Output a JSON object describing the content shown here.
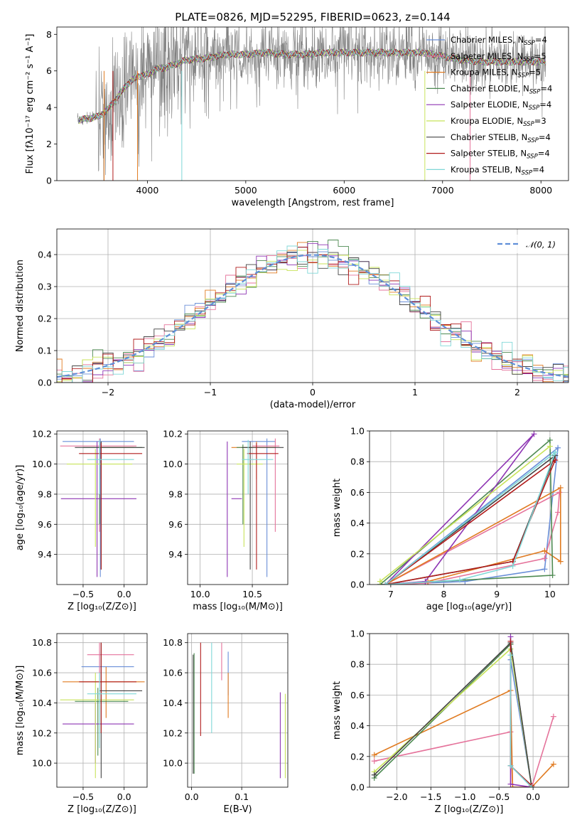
{
  "title": "PLATE=0826, MJD=52295, FIBERID=0623, z=0.144",
  "colors": {
    "chabrier_miles": "#6a8fd8",
    "salpeter_miles": "#e5739b",
    "kroupa_miles": "#e07b21",
    "chabrier_elodie": "#4e8a52",
    "salpeter_elodie": "#8e35b3",
    "kroupa_elodie": "#c8e35a",
    "chabrier_stelib": "#444444",
    "salpeter_stelib": "#b01c1c",
    "kroupa_stelib": "#7fd7d7",
    "data": "#808080",
    "normal": "#5f8fd8"
  },
  "chart_data": [
    {
      "id": "spectrum",
      "type": "line",
      "xlabel": "wavelength [Angstrom, rest frame]",
      "ylabel": "Flux [fλ10⁻¹⁷ erg cm⁻² s⁻¹ A⁻¹]",
      "xlim": [
        3080,
        8280
      ],
      "ylim": [
        0,
        8.4
      ],
      "xticks": [
        "4000",
        "5000",
        "6000",
        "7000",
        "8000"
      ],
      "yticks": [
        "0",
        "2",
        "4",
        "6",
        "8"
      ],
      "legend_position": "right",
      "legend": [
        "Chabrier MILES, N_SSP=4",
        "Salpeter MILES, N_SSP=5",
        "Kroupa MILES, N_SSP=5",
        "Chabrier ELODIE, N_SSP=4",
        "Salpeter ELODIE, N_SSP=4",
        "Kroupa ELODIE, N_SSP=3",
        "Chabrier STELIB, N_SSP=4",
        "Salpeter STELIB, N_SSP=4",
        "Kroupa STELIB, N_SSP=4"
      ],
      "model_continuum": {
        "x": [
          3300,
          3500,
          3600,
          3700,
          3800,
          3900,
          4000,
          4100,
          4200,
          4400,
          4600,
          4800,
          5000,
          5200,
          5400,
          5600,
          5800,
          6000,
          6200,
          6400,
          6600,
          6800,
          7000,
          7200,
          7400,
          7600,
          7800,
          8000
        ],
        "y": [
          3.3,
          3.5,
          3.9,
          4.6,
          5.3,
          5.7,
          5.8,
          6.1,
          6.2,
          6.6,
          6.7,
          6.9,
          6.9,
          7.0,
          6.9,
          6.9,
          7.0,
          7.0,
          7.0,
          7.0,
          7.0,
          7.0,
          6.8,
          6.6,
          6.5,
          6.5,
          6.5,
          6.5
        ]
      }
    },
    {
      "id": "residual_hist",
      "type": "step-histogram",
      "xlabel": "(data-model)/error",
      "ylabel": "Normed distribution",
      "xlim": [
        -2.5,
        2.5
      ],
      "ylim": [
        0,
        0.48
      ],
      "xticks": [
        "−2",
        "−1",
        "0",
        "1",
        "2"
      ],
      "yticks": [
        "0.0",
        "0.1",
        "0.2",
        "0.3",
        "0.4"
      ],
      "reference_curve": "𝒩(0, 1)",
      "bin_width": 0.1
    },
    {
      "id": "age_vs_Z",
      "type": "errorbar",
      "xlabel": "Z [log₁₀(Z/Z⊙)]",
      "ylabel": "age  [log₁₀(age/yr)]",
      "xlim": [
        -0.82,
        0.28
      ],
      "ylim": [
        9.2,
        10.22
      ],
      "xticks": [
        "−0.5",
        "0.0"
      ],
      "yticks": [
        "9.4",
        "9.6",
        "9.8",
        "10.0",
        "10.2"
      ],
      "points": [
        {
          "x": -0.29,
          "xlo": -0.75,
          "xhi": 0.12,
          "y": 10.15,
          "ylo": 9.25,
          "yhi": 10.17
        },
        {
          "x": -0.3,
          "xlo": -0.78,
          "xhi": 0.15,
          "y": 10.12,
          "ylo": 9.55,
          "yhi": 10.17
        },
        {
          "x": -0.28,
          "xlo": -0.32,
          "xhi": 0.12,
          "y": 10.11,
          "ylo": 9.9,
          "yhi": 10.15
        },
        {
          "x": -0.3,
          "xlo": -0.5,
          "xhi": 0.22,
          "y": 10.11,
          "ylo": 9.6,
          "yhi": 10.13
        },
        {
          "x": -0.33,
          "xlo": -0.77,
          "xhi": 0.15,
          "y": 9.77,
          "ylo": 9.25,
          "yhi": 10.15
        },
        {
          "x": -0.35,
          "xlo": -0.7,
          "xhi": 0.1,
          "y": 10.0,
          "ylo": 9.45,
          "yhi": 10.1
        },
        {
          "x": -0.28,
          "xlo": -0.6,
          "xhi": 0.25,
          "y": 10.11,
          "ylo": 9.3,
          "yhi": 10.15
        },
        {
          "x": -0.28,
          "xlo": -0.55,
          "xhi": 0.22,
          "y": 10.07,
          "ylo": 9.3,
          "yhi": 10.14
        },
        {
          "x": -0.3,
          "xlo": -0.45,
          "xhi": 0.12,
          "y": 10.03,
          "ylo": 9.8,
          "yhi": 10.16
        }
      ]
    },
    {
      "id": "age_vs_mass",
      "type": "errorbar",
      "xlabel": "mass [log₁₀(M/M⊙)]",
      "xlim": [
        9.88,
        10.84
      ],
      "ylim": [
        9.2,
        10.22
      ],
      "xticks": [
        "10.0",
        "10.5"
      ],
      "yticks": [
        "9.4",
        "9.6",
        "9.8",
        "10.0",
        "10.2"
      ],
      "points": [
        {
          "x": 10.64,
          "xlo": 10.4,
          "xhi": 10.72,
          "y": 10.15,
          "ylo": 9.25,
          "yhi": 10.17
        },
        {
          "x": 10.72,
          "xlo": 10.5,
          "xhi": 10.76,
          "y": 10.12,
          "ylo": 9.55,
          "yhi": 10.17
        },
        {
          "x": 10.54,
          "xlo": 10.3,
          "xhi": 10.72,
          "y": 10.11,
          "ylo": 9.9,
          "yhi": 10.15
        },
        {
          "x": 10.41,
          "xlo": 10.35,
          "xhi": 10.5,
          "y": 10.11,
          "ylo": 9.6,
          "yhi": 10.13
        },
        {
          "x": 10.26,
          "xlo": 10.3,
          "xhi": 10.4,
          "y": 9.77,
          "ylo": 9.25,
          "yhi": 10.15
        },
        {
          "x": 10.42,
          "xlo": 10.35,
          "xhi": 10.6,
          "y": 10.0,
          "ylo": 9.45,
          "yhi": 10.1
        },
        {
          "x": 10.48,
          "xlo": 10.4,
          "xhi": 10.8,
          "y": 10.11,
          "ylo": 9.3,
          "yhi": 10.15
        },
        {
          "x": 10.54,
          "xlo": 10.45,
          "xhi": 10.75,
          "y": 10.07,
          "ylo": 9.3,
          "yhi": 10.14
        },
        {
          "x": 10.46,
          "xlo": 10.4,
          "xhi": 10.7,
          "y": 10.03,
          "ylo": 9.8,
          "yhi": 10.16
        }
      ]
    },
    {
      "id": "mass_weight_vs_age",
      "type": "line",
      "xlabel": "age  [log₁₀(age/yr)]",
      "ylabel": "mass weight",
      "xlim": [
        6.6,
        10.35
      ],
      "ylim": [
        0,
        1.0
      ],
      "xticks": [
        "7",
        "8",
        "9",
        "10"
      ],
      "yticks": [
        "0.0",
        "0.2",
        "0.4",
        "0.6",
        "0.8",
        "1.0"
      ],
      "series": [
        {
          "x": [
            6.9,
            8.4,
            9.9,
            10.15,
            6.9
          ],
          "y": [
            0.0,
            0.02,
            0.1,
            0.89,
            0.0
          ]
        },
        {
          "x": [
            6.9,
            7.7,
            9.9,
            10.15,
            10.18,
            6.9
          ],
          "y": [
            0.0,
            0.01,
            0.17,
            0.47,
            0.6,
            0.0
          ]
        },
        {
          "x": [
            6.9,
            7.7,
            9.9,
            10.2,
            10.2,
            6.9
          ],
          "y": [
            0.0,
            0.02,
            0.22,
            0.15,
            0.63,
            0.0
          ]
        },
        {
          "x": [
            6.8,
            10.0,
            10.05,
            6.8
          ],
          "y": [
            0.0,
            0.94,
            0.06,
            0.0
          ]
        },
        {
          "x": [
            6.9,
            7.65,
            9.7,
            6.9
          ],
          "y": [
            0.0,
            0.02,
            0.98,
            0.0
          ]
        },
        {
          "x": [
            6.8,
            10.0,
            6.8
          ],
          "y": [
            0.02,
            0.9,
            0.02
          ]
        },
        {
          "x": [
            6.9,
            9.3,
            10.1,
            6.9
          ],
          "y": [
            0.0,
            0.15,
            0.84,
            0.0
          ]
        },
        {
          "x": [
            6.9,
            9.3,
            10.1,
            6.9
          ],
          "y": [
            0.0,
            0.15,
            0.81,
            0.0
          ]
        },
        {
          "x": [
            6.9,
            8.3,
            9.3,
            10.1,
            6.9
          ],
          "y": [
            0.0,
            0.03,
            0.12,
            0.86,
            0.0
          ]
        }
      ]
    },
    {
      "id": "mass_vs_Z",
      "type": "errorbar",
      "xlabel": "Z [log₁₀(Z/Z⊙)]",
      "ylabel": "mass [log₁₀(M/M⊙)]",
      "xlim": [
        -0.82,
        0.28
      ],
      "ylim": [
        9.84,
        10.86
      ],
      "xticks": [
        "−0.5",
        "0.0"
      ],
      "yticks": [
        "10.0",
        "10.2",
        "10.4",
        "10.6",
        "10.8"
      ],
      "points": [
        {
          "x": -0.3,
          "xlo": -0.52,
          "xhi": 0.12,
          "y": 10.64,
          "ylo": 10.45,
          "yhi": 10.74
        },
        {
          "x": -0.3,
          "xlo": -0.45,
          "xhi": 0.12,
          "y": 10.72,
          "ylo": 10.55,
          "yhi": 10.8
        },
        {
          "x": -0.22,
          "xlo": -0.75,
          "xhi": 0.25,
          "y": 10.54,
          "ylo": 10.3,
          "yhi": 10.64
        },
        {
          "x": -0.32,
          "xlo": -0.6,
          "xhi": 0.05,
          "y": 10.41,
          "ylo": 10.05,
          "yhi": 10.5
        },
        {
          "x": -0.35,
          "xlo": -0.75,
          "xhi": 0.12,
          "y": 10.26,
          "ylo": 10.0,
          "yhi": 10.4
        },
        {
          "x": -0.35,
          "xlo": -0.78,
          "xhi": 0.12,
          "y": 10.42,
          "ylo": 9.9,
          "yhi": 10.6
        },
        {
          "x": -0.28,
          "xlo": -0.3,
          "xhi": 0.22,
          "y": 10.48,
          "ylo": 9.9,
          "yhi": 10.8
        },
        {
          "x": -0.28,
          "xlo": -0.55,
          "xhi": 0.15,
          "y": 10.54,
          "ylo": 10.2,
          "yhi": 10.8
        },
        {
          "x": -0.3,
          "xlo": -0.45,
          "xhi": 0.15,
          "y": 10.46,
          "ylo": 10.1,
          "yhi": 10.6
        }
      ]
    },
    {
      "id": "mass_vs_ebv",
      "type": "errorbar",
      "xlabel": "E(B-V)",
      "xlim": [
        -0.008,
        0.192
      ],
      "ylim": [
        9.84,
        10.86
      ],
      "xticks": [
        "0.0",
        "0.1"
      ],
      "yticks": [
        "10.0",
        "10.2",
        "10.4",
        "10.6",
        "10.8"
      ],
      "points": [
        {
          "x": 0.073,
          "y": 10.64,
          "ylo": 10.45,
          "yhi": 10.74
        },
        {
          "x": 0.06,
          "y": 10.72,
          "ylo": 10.55,
          "yhi": 10.8
        },
        {
          "x": 0.073,
          "y": 10.54,
          "ylo": 10.3,
          "yhi": 10.6
        },
        {
          "x": 0.005,
          "y": 10.41,
          "ylo": 9.93,
          "yhi": 10.73
        },
        {
          "x": 0.177,
          "y": 10.26,
          "ylo": 9.9,
          "yhi": 10.47
        },
        {
          "x": 0.187,
          "y": 10.42,
          "ylo": 9.9,
          "yhi": 10.46
        },
        {
          "x": 0.003,
          "y": 10.48,
          "ylo": 9.93,
          "yhi": 10.72
        },
        {
          "x": 0.018,
          "y": 10.54,
          "ylo": 10.18,
          "yhi": 10.8
        },
        {
          "x": 0.04,
          "y": 10.46,
          "ylo": 10.2,
          "yhi": 10.8
        }
      ]
    },
    {
      "id": "mass_weight_vs_Z",
      "type": "line",
      "xlabel": "Z [log₁₀(Z/Z⊙)]",
      "ylabel": "mass weight",
      "xlim": [
        -2.4,
        0.52
      ],
      "ylim": [
        0,
        1.0
      ],
      "xticks": [
        "−2.0",
        "−1.5",
        "−1.0",
        "−0.5",
        "0.0"
      ],
      "yticks": [
        "0.0",
        "0.2",
        "0.4",
        "0.6",
        "0.8",
        "1.0"
      ],
      "series": [
        {
          "x": [
            -0.33,
            -0.33,
            -0.02,
            -0.33
          ],
          "y": [
            0.14,
            0.83,
            0.0,
            0.14
          ]
        },
        {
          "x": [
            -2.33,
            -0.33,
            -0.3,
            -0.02,
            0.3
          ],
          "y": [
            0.17,
            0.36,
            0.0,
            0.0,
            0.46
          ]
        },
        {
          "x": [
            -2.33,
            -0.33,
            -0.3,
            -0.02,
            0.3
          ],
          "y": [
            0.21,
            0.63,
            0.0,
            0.0,
            0.15
          ]
        },
        {
          "x": [
            -2.33,
            -0.33,
            -0.02
          ],
          "y": [
            0.06,
            0.93,
            0.0
          ]
        },
        {
          "x": [
            -0.33,
            -0.33,
            -0.02
          ],
          "y": [
            0.98,
            0.02,
            0.0
          ]
        },
        {
          "x": [
            -2.33,
            -0.33,
            -0.02
          ],
          "y": [
            0.1,
            0.9,
            0.0
          ]
        },
        {
          "x": [
            -2.33,
            -0.33,
            -0.02
          ],
          "y": [
            0.08,
            0.94,
            0.0
          ]
        },
        {
          "x": [
            -0.33,
            -0.33,
            -0.02
          ],
          "y": [
            0.95,
            0.14,
            0.01
          ]
        },
        {
          "x": [
            -0.33,
            -0.33,
            -0.02
          ],
          "y": [
            0.86,
            0.14,
            0.0
          ]
        }
      ]
    }
  ]
}
